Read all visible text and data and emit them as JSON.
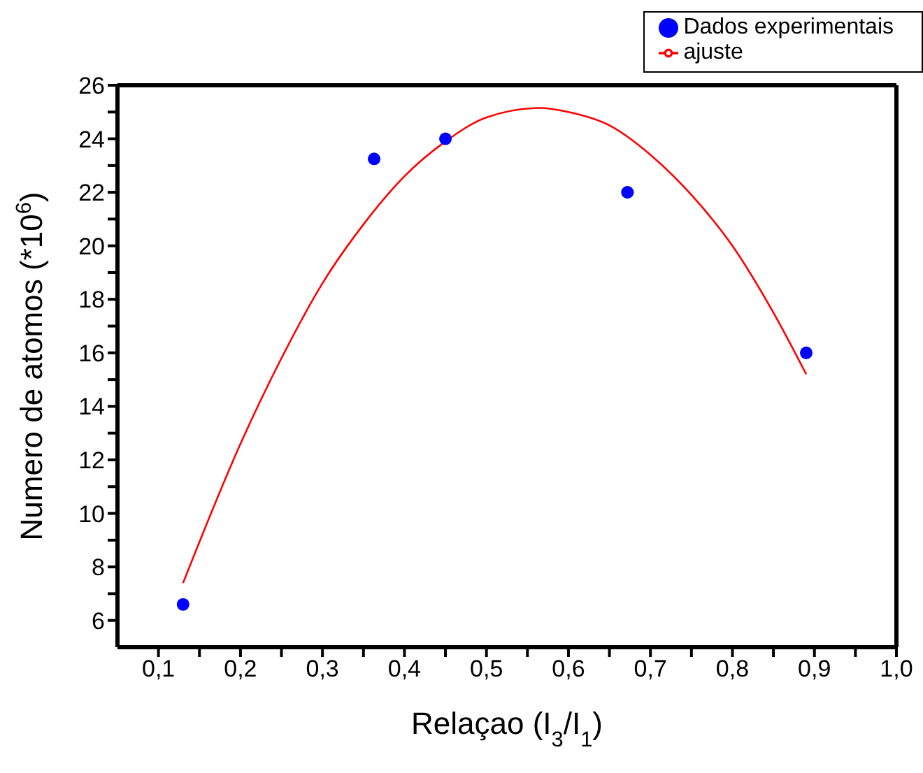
{
  "chart_data": {
    "type": "scatter",
    "xlabel": "Relaçao (I$_{3}$/I$_{1}$)",
    "ylabel": "Numero de atomos (*10$^{6}$)",
    "series": [
      {
        "name": "Dados experimentais",
        "color": "#0000ff",
        "marker": "circle",
        "x": [
          0.13,
          0.363,
          0.45,
          0.672,
          0.89
        ],
        "values": [
          6.6,
          23.25,
          24.0,
          22.0,
          16.0
        ]
      },
      {
        "name": "ajuste",
        "type": "line",
        "color": "#ff0000",
        "marker": "none",
        "line_style": "solid",
        "x": [
          0.13,
          0.2,
          0.25,
          0.3,
          0.35,
          0.4,
          0.45,
          0.5,
          0.565,
          0.6,
          0.65,
          0.7,
          0.75,
          0.8,
          0.85,
          0.89
        ],
        "values": [
          7.4,
          12.6,
          15.8,
          18.6,
          20.8,
          22.6,
          23.9,
          24.8,
          25.15,
          25.0,
          24.5,
          23.4,
          21.9,
          20.0,
          17.5,
          15.2
        ]
      }
    ],
    "xlim": [
      0.05,
      1.0
    ],
    "xticks": [
      {
        "value": 0.1,
        "label": "0,1"
      },
      {
        "value": 0.15,
        "label": null
      },
      {
        "value": 0.2,
        "label": "0,2"
      },
      {
        "value": 0.25,
        "label": null
      },
      {
        "value": 0.3,
        "label": "0,3"
      },
      {
        "value": 0.35,
        "label": null
      },
      {
        "value": 0.4,
        "label": "0,4"
      },
      {
        "value": 0.45,
        "label": null
      },
      {
        "value": 0.5,
        "label": "0,5"
      },
      {
        "value": 0.55,
        "label": null
      },
      {
        "value": 0.6,
        "label": "0,6"
      },
      {
        "value": 0.65,
        "label": null
      },
      {
        "value": 0.7,
        "label": "0,7"
      },
      {
        "value": 0.75,
        "label": null
      },
      {
        "value": 0.8,
        "label": "0,8"
      },
      {
        "value": 0.85,
        "label": null
      },
      {
        "value": 0.9,
        "label": "0,9"
      },
      {
        "value": 0.95,
        "label": null
      },
      {
        "value": 1.0,
        "label": "1,0"
      }
    ],
    "ylim": [
      5,
      26
    ],
    "yticks": [
      6,
      {
        "value": 7,
        "label": null
      },
      8,
      {
        "value": 9,
        "label": null
      },
      10,
      {
        "value": 11,
        "label": null
      },
      12,
      {
        "value": 13,
        "label": null
      },
      14,
      {
        "value": 15,
        "label": null
      },
      16,
      {
        "value": 17,
        "label": null
      },
      18,
      {
        "value": 19,
        "label": null
      },
      20,
      {
        "value": 21,
        "label": null
      },
      22,
      {
        "value": 23,
        "label": null
      },
      24,
      {
        "value": 25,
        "label": null
      },
      26
    ],
    "legend": "top right"
  }
}
